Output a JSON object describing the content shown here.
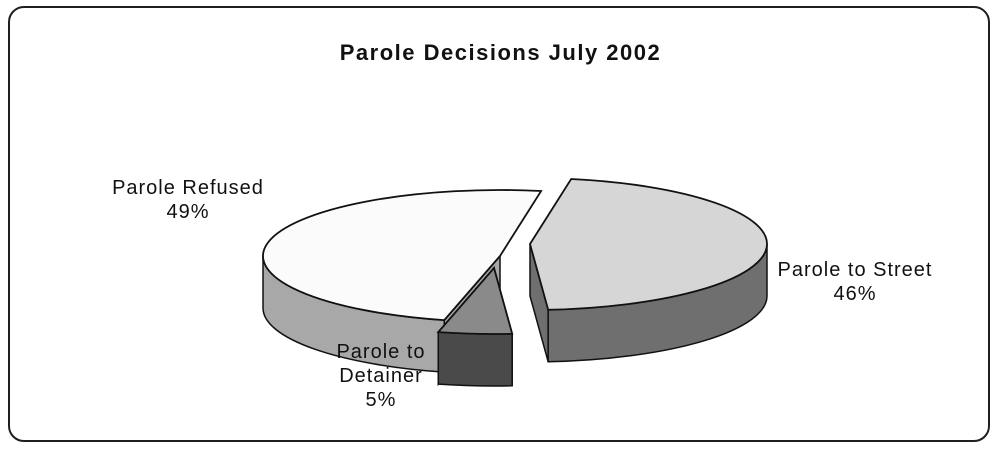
{
  "chart_data": {
    "type": "pie",
    "title": "Parole Decisions July 2002",
    "slices": [
      {
        "label": "Parole Refused",
        "value": 49,
        "pct_label": "49%",
        "top_color": "#fbfbfb",
        "side_color": "#a8a8a8"
      },
      {
        "label": "Parole to Street",
        "value": 46,
        "pct_label": "46%",
        "top_color": "#d6d6d6",
        "side_color": "#6f6f6f"
      },
      {
        "label_lines": [
          "Parole to",
          "Detainer"
        ],
        "label": "Parole to Detainer",
        "value": 5,
        "pct_label": "5%",
        "top_color": "#8a8a8a",
        "side_color": "#4a4a4a"
      }
    ],
    "legend": "none",
    "style": "3d-exploded"
  }
}
